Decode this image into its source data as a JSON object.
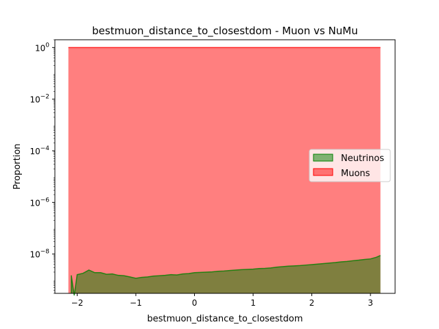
{
  "chart_data": {
    "type": "area",
    "title": "bestmuon_distance_to_closestdom - Muon vs NuMu",
    "xlabel": "bestmuon_distance_to_closestdom",
    "ylabel": "Proportion",
    "y_scale": "log",
    "xlim": [
      -2.38,
      3.42
    ],
    "ylim": [
      3e-10,
      2.0
    ],
    "x_ticks": [
      -2,
      -1,
      0,
      1,
      2,
      3
    ],
    "x_tick_labels": [
      "−2",
      "−1",
      "0",
      "1",
      "2",
      "3"
    ],
    "y_ticks": [
      1e-08,
      1e-06,
      0.0001,
      0.01,
      1
    ],
    "y_tick_labels": [
      {
        "base": "10",
        "exp": "−8"
      },
      {
        "base": "10",
        "exp": "−6"
      },
      {
        "base": "10",
        "exp": "−4"
      },
      {
        "base": "10",
        "exp": "−2"
      },
      {
        "base": "10",
        "exp": "0"
      }
    ],
    "legend_placement": "center-right",
    "colors": {
      "neutrinos": "#008000",
      "muons": "#ff0000"
    },
    "series": [
      {
        "name": "Neutrinos",
        "x": [
          -2.1,
          -2.05,
          -2.0,
          -1.9,
          -1.8,
          -1.7,
          -1.6,
          -1.5,
          -1.4,
          -1.3,
          -1.2,
          -1.1,
          -1.0,
          -0.9,
          -0.8,
          -0.7,
          -0.6,
          -0.5,
          -0.4,
          -0.3,
          -0.2,
          -0.1,
          0.0,
          0.1,
          0.2,
          0.3,
          0.4,
          0.5,
          0.6,
          0.7,
          0.8,
          0.9,
          1.0,
          1.1,
          1.2,
          1.3,
          1.4,
          1.5,
          1.6,
          1.7,
          1.8,
          1.9,
          2.0,
          2.1,
          2.2,
          2.3,
          2.4,
          2.5,
          2.6,
          2.7,
          2.8,
          2.9,
          3.0,
          3.1,
          3.17
        ],
        "values": [
          1.5e-09,
          2.5e-10,
          1.6e-09,
          1.8e-09,
          2.4e-09,
          1.9e-09,
          1.9e-09,
          1.65e-09,
          1.7e-09,
          1.5e-09,
          1.45e-09,
          1.3e-09,
          1.15e-09,
          1.25e-09,
          1.3e-09,
          1.4e-09,
          1.45e-09,
          1.5e-09,
          1.6e-09,
          1.55e-09,
          1.7e-09,
          1.75e-09,
          1.9e-09,
          1.95e-09,
          2e-09,
          2.05e-09,
          2.15e-09,
          2.2e-09,
          2.3e-09,
          2.4e-09,
          2.5e-09,
          2.55e-09,
          2.6e-09,
          2.75e-09,
          2.8e-09,
          2.9e-09,
          3.1e-09,
          3.25e-09,
          3.4e-09,
          3.5e-09,
          3.6e-09,
          3.75e-09,
          3.9e-09,
          4.1e-09,
          4.3e-09,
          4.5e-09,
          4.7e-09,
          5e-09,
          5.2e-09,
          5.5e-09,
          5.8e-09,
          6.2e-09,
          6.5e-09,
          7.5e-09,
          8.8e-09
        ]
      },
      {
        "name": "Muons",
        "x": [
          -2.15,
          3.17
        ],
        "values": [
          1.0,
          1.0
        ]
      }
    ]
  }
}
